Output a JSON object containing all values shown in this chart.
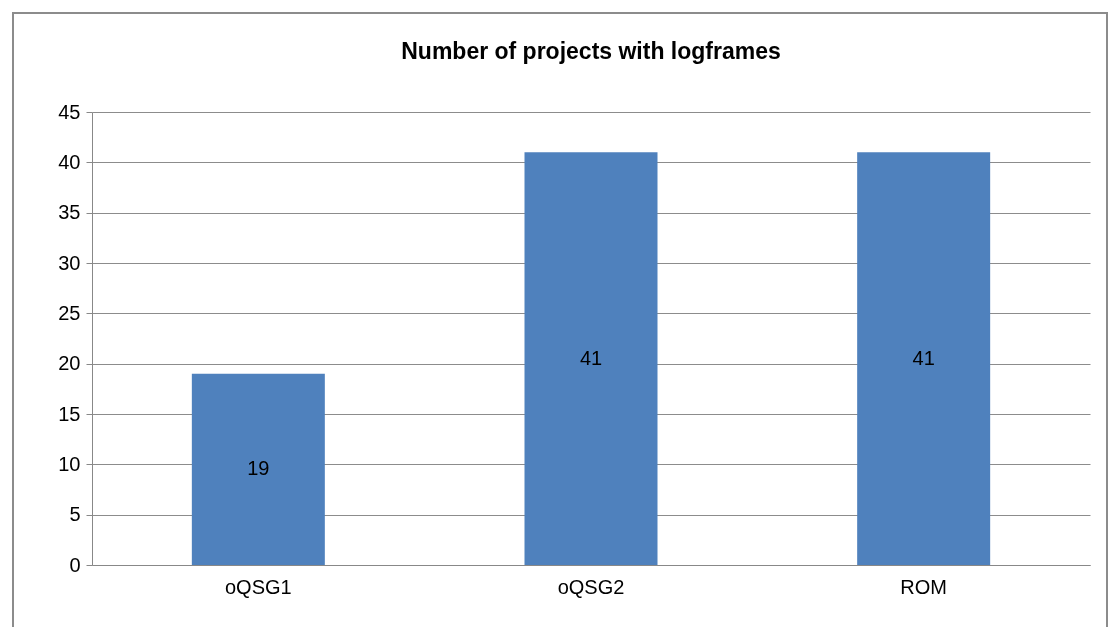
{
  "chart_data": {
    "type": "bar",
    "title": "Number of projects with logframes",
    "categories": [
      "oQSG1",
      "oQSG2",
      "ROM"
    ],
    "values": [
      19,
      41,
      41
    ],
    "color": "#4f81bd",
    "ylim": [
      0,
      45
    ],
    "yticks": [
      0,
      5,
      10,
      15,
      20,
      25,
      30,
      35,
      40,
      45
    ],
    "grid": "y",
    "data_labels": true
  }
}
